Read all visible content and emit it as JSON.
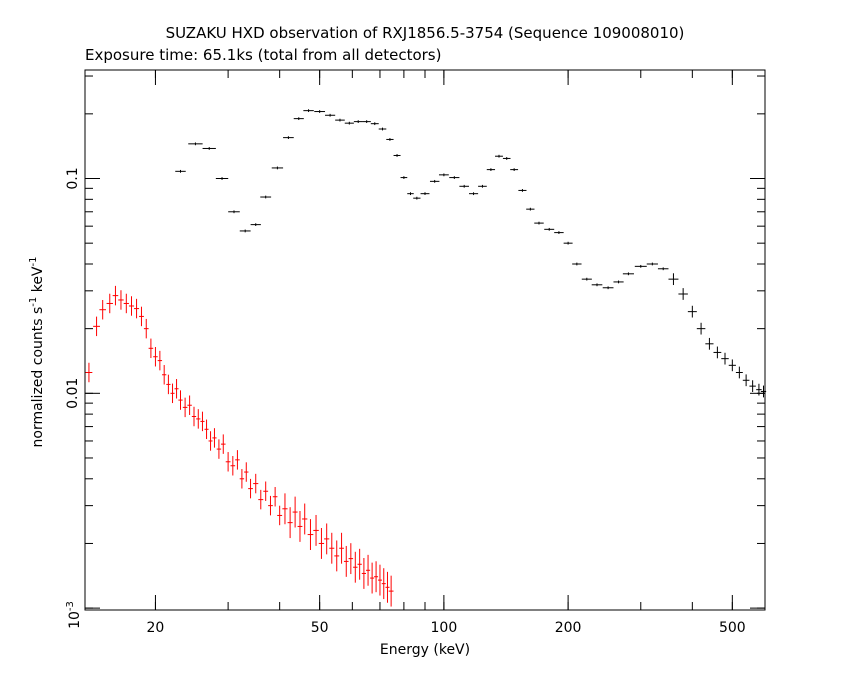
{
  "chart_data": {
    "type": "scatter",
    "title": "SUZAKU HXD observation of RXJ1856.5-3754 (Sequence 109008010)",
    "subtitle": "Exposure time: 65.1ks (total from all detectors)",
    "xlabel": "Energy (keV)",
    "ylabel_main": "normalized counts s",
    "ylabel_exp1": "-1",
    "ylabel_mid": " keV",
    "ylabel_exp2": "-1",
    "x_scale": "log",
    "y_scale": "log",
    "xlim": [
      13.5,
      600
    ],
    "ylim": [
      0.00098,
      0.32
    ],
    "x_ticks": [
      {
        "value": 20,
        "label": "20"
      },
      {
        "value": 50,
        "label": "50"
      },
      {
        "value": 100,
        "label": "100"
      },
      {
        "value": 200,
        "label": "200"
      },
      {
        "value": 500,
        "label": "500"
      }
    ],
    "y_ticks": [
      {
        "value": 0.1,
        "label": "0.1"
      },
      {
        "value": 0.01,
        "label": "0.01"
      }
    ],
    "y_tick_bottom": {
      "base": "10",
      "exp": "-3"
    },
    "series": [
      {
        "color": "#000000",
        "points": [
          [
            23.0,
            0.108
          ],
          [
            25.0,
            0.145
          ],
          [
            27.0,
            0.138
          ],
          [
            29.0,
            0.1
          ],
          [
            31.0,
            0.07
          ],
          [
            33.0,
            0.057
          ],
          [
            35.0,
            0.061
          ],
          [
            37.0,
            0.082
          ],
          [
            39.5,
            0.112
          ],
          [
            42.0,
            0.155
          ],
          [
            44.5,
            0.19
          ],
          [
            47.0,
            0.207
          ],
          [
            50.0,
            0.205
          ],
          [
            53.0,
            0.197
          ],
          [
            56.0,
            0.187
          ],
          [
            59.0,
            0.181
          ],
          [
            62.0,
            0.184
          ],
          [
            65.0,
            0.184
          ],
          [
            68.0,
            0.18
          ],
          [
            71.0,
            0.17
          ],
          [
            74.0,
            0.152
          ],
          [
            77.0,
            0.128
          ],
          [
            80.0,
            0.101
          ],
          [
            83.0,
            0.085
          ],
          [
            86.0,
            0.081
          ],
          [
            90.0,
            0.085
          ],
          [
            95.0,
            0.097
          ],
          [
            100.0,
            0.104
          ],
          [
            106.0,
            0.101
          ],
          [
            112.0,
            0.092
          ],
          [
            118.0,
            0.085
          ],
          [
            124.0,
            0.092
          ],
          [
            130.0,
            0.11
          ],
          [
            136.0,
            0.127
          ],
          [
            142.0,
            0.124
          ],
          [
            148.0,
            0.11
          ],
          [
            155.0,
            0.088
          ],
          [
            162.0,
            0.072
          ],
          [
            170.0,
            0.062
          ],
          [
            180.0,
            0.058
          ],
          [
            190.0,
            0.056
          ],
          [
            200.0,
            0.05
          ],
          [
            210.0,
            0.04
          ],
          [
            222.0,
            0.034
          ],
          [
            235.0,
            0.032
          ],
          [
            250.0,
            0.031
          ],
          [
            265.0,
            0.033
          ],
          [
            280.0,
            0.036
          ],
          [
            300.0,
            0.039
          ],
          [
            320.0,
            0.04
          ],
          [
            340.0,
            0.038
          ],
          [
            360.0,
            0.034
          ],
          [
            380.0,
            0.029
          ],
          [
            400.0,
            0.024
          ],
          [
            420.0,
            0.02
          ],
          [
            440.0,
            0.017
          ],
          [
            460.0,
            0.0155
          ],
          [
            480.0,
            0.0145
          ],
          [
            500.0,
            0.0135
          ],
          [
            520.0,
            0.0125
          ],
          [
            540.0,
            0.0115
          ],
          [
            560.0,
            0.0108
          ],
          [
            580.0,
            0.0104
          ],
          [
            595.0,
            0.0102
          ]
        ]
      },
      {
        "color": "#ff0000",
        "points": [
          [
            13.8,
            0.0125
          ],
          [
            14.4,
            0.0205
          ],
          [
            14.9,
            0.0245
          ],
          [
            15.5,
            0.0262
          ],
          [
            16.0,
            0.0285
          ],
          [
            16.5,
            0.0272
          ],
          [
            17.0,
            0.0262
          ],
          [
            17.5,
            0.0255
          ],
          [
            18.0,
            0.0248
          ],
          [
            18.5,
            0.0228
          ],
          [
            19.0,
            0.02
          ],
          [
            19.5,
            0.0162
          ],
          [
            20.0,
            0.0148
          ],
          [
            20.5,
            0.0142
          ],
          [
            21.0,
            0.0122
          ],
          [
            21.5,
            0.011
          ],
          [
            22.0,
            0.01
          ],
          [
            22.5,
            0.0105
          ],
          [
            23.0,
            0.0093
          ],
          [
            23.6,
            0.0086
          ],
          [
            24.2,
            0.0088
          ],
          [
            24.8,
            0.0078
          ],
          [
            25.4,
            0.0076
          ],
          [
            26.0,
            0.0074
          ],
          [
            26.6,
            0.0068
          ],
          [
            27.2,
            0.006
          ],
          [
            27.8,
            0.0062
          ],
          [
            28.5,
            0.0055
          ],
          [
            29.2,
            0.0058
          ],
          [
            30.0,
            0.0048
          ],
          [
            30.8,
            0.0046
          ],
          [
            31.6,
            0.0049
          ],
          [
            32.4,
            0.004
          ],
          [
            33.2,
            0.0043
          ],
          [
            34.0,
            0.0036
          ],
          [
            35.0,
            0.0038
          ],
          [
            36.0,
            0.0032
          ],
          [
            37.0,
            0.0035
          ],
          [
            38.0,
            0.003
          ],
          [
            39.0,
            0.0033
          ],
          [
            40.0,
            0.0027
          ],
          [
            41.2,
            0.0029
          ],
          [
            42.4,
            0.0025
          ],
          [
            43.6,
            0.0028
          ],
          [
            44.8,
            0.0024
          ],
          [
            46.0,
            0.0026
          ],
          [
            47.5,
            0.0022
          ],
          [
            49.0,
            0.0023
          ],
          [
            50.5,
            0.002
          ],
          [
            52.0,
            0.0021
          ],
          [
            53.5,
            0.0019
          ],
          [
            55.0,
            0.00175
          ],
          [
            56.5,
            0.0019
          ],
          [
            58.0,
            0.00165
          ],
          [
            59.5,
            0.0017
          ],
          [
            61.0,
            0.00155
          ],
          [
            62.5,
            0.0016
          ],
          [
            64.0,
            0.00145
          ],
          [
            65.5,
            0.0015
          ],
          [
            67.0,
            0.00138
          ],
          [
            68.5,
            0.0014
          ],
          [
            70.0,
            0.00135
          ],
          [
            71.5,
            0.0013
          ],
          [
            73.0,
            0.00125
          ],
          [
            74.5,
            0.0012
          ]
        ]
      }
    ]
  }
}
